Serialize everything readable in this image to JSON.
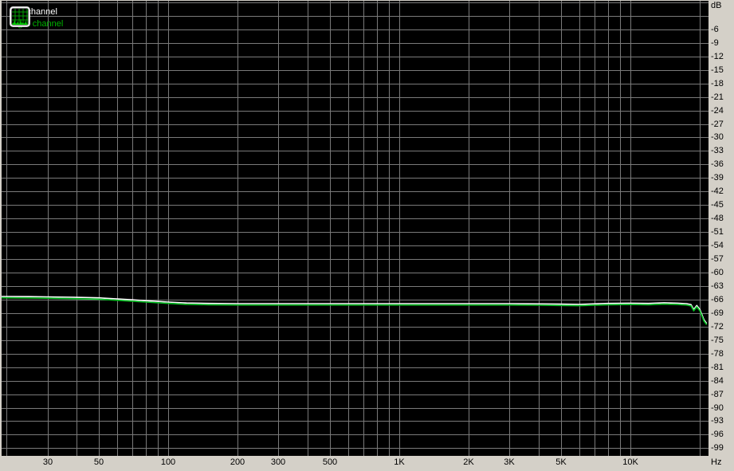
{
  "window": {
    "background": "#d4d0c8",
    "plot_background": "#000000",
    "grid_color": "#7a7a7a",
    "label_color": "#000000"
  },
  "legend": {
    "icon": "spectrum-analyzer-icon",
    "items": [
      {
        "label": "Left channel",
        "color": "#ffffff"
      },
      {
        "label": "Right channel",
        "color": "#00b400"
      }
    ]
  },
  "chart_data": {
    "type": "line",
    "title": "",
    "x_axis": {
      "unit_label": "Hz",
      "scale": "log",
      "min": 19,
      "max": 21800,
      "gridlines": [
        20,
        30,
        40,
        50,
        60,
        70,
        80,
        90,
        100,
        200,
        300,
        400,
        500,
        600,
        700,
        800,
        900,
        1000,
        2000,
        3000,
        4000,
        5000,
        6000,
        7000,
        8000,
        9000,
        10000,
        20000
      ],
      "tick_labels": [
        {
          "f": 30,
          "label": "30"
        },
        {
          "f": 50,
          "label": "50"
        },
        {
          "f": 100,
          "label": "100"
        },
        {
          "f": 200,
          "label": "200"
        },
        {
          "f": 300,
          "label": "300"
        },
        {
          "f": 500,
          "label": "500"
        },
        {
          "f": 1000,
          "label": "1K"
        },
        {
          "f": 2000,
          "label": "2K"
        },
        {
          "f": 3000,
          "label": "3K"
        },
        {
          "f": 5000,
          "label": "5K"
        },
        {
          "f": 10000,
          "label": "10K"
        }
      ]
    },
    "y_axis": {
      "unit_label": "dB",
      "max": 0.35,
      "min": -100.7,
      "grid_step": 3,
      "grid_top": 0,
      "grid_bottom": -99,
      "tick_labels": [
        "-6",
        "-9",
        "-12",
        "-15",
        "-18",
        "-21",
        "-24",
        "-27",
        "-30",
        "-33",
        "-36",
        "-39",
        "-42",
        "-45",
        "-48",
        "-51",
        "-54",
        "-57",
        "-60",
        "-63",
        "-66",
        "-69",
        "-72",
        "-75",
        "-78",
        "-81",
        "-84",
        "-87",
        "-90",
        "-93",
        "-96",
        "-99"
      ]
    },
    "legend_position": "top-left",
    "grid": true,
    "series": [
      {
        "name": "Left channel",
        "color": "#ffffff",
        "points": [
          [
            19,
            -65.3
          ],
          [
            25,
            -65.35
          ],
          [
            30,
            -65.4
          ],
          [
            40,
            -65.5
          ],
          [
            50,
            -65.6
          ],
          [
            60,
            -65.85
          ],
          [
            70,
            -66.05
          ],
          [
            80,
            -66.25
          ],
          [
            100,
            -66.55
          ],
          [
            120,
            -66.75
          ],
          [
            150,
            -66.85
          ],
          [
            200,
            -66.9
          ],
          [
            300,
            -66.9
          ],
          [
            400,
            -66.9
          ],
          [
            500,
            -66.9
          ],
          [
            700,
            -66.9
          ],
          [
            1000,
            -66.9
          ],
          [
            1500,
            -66.9
          ],
          [
            2000,
            -66.9
          ],
          [
            3000,
            -66.9
          ],
          [
            4000,
            -66.95
          ],
          [
            5000,
            -67.0
          ],
          [
            6000,
            -67.05
          ],
          [
            8000,
            -66.85
          ],
          [
            10000,
            -66.8
          ],
          [
            12000,
            -66.85
          ],
          [
            14000,
            -66.7
          ],
          [
            16000,
            -66.8
          ],
          [
            17500,
            -66.9
          ],
          [
            18300,
            -67.1
          ],
          [
            18800,
            -68.2
          ],
          [
            19400,
            -67.3
          ],
          [
            20000,
            -68.2
          ],
          [
            20800,
            -70.4
          ],
          [
            21400,
            -71.3
          ]
        ]
      },
      {
        "name": "Right channel",
        "color": "#00c020",
        "points": [
          [
            19,
            -65.6
          ],
          [
            25,
            -65.65
          ],
          [
            30,
            -65.7
          ],
          [
            40,
            -65.8
          ],
          [
            50,
            -65.9
          ],
          [
            60,
            -66.15
          ],
          [
            70,
            -66.35
          ],
          [
            80,
            -66.55
          ],
          [
            100,
            -66.85
          ],
          [
            120,
            -67.05
          ],
          [
            150,
            -67.15
          ],
          [
            200,
            -67.2
          ],
          [
            300,
            -67.2
          ],
          [
            400,
            -67.2
          ],
          [
            500,
            -67.2
          ],
          [
            700,
            -67.2
          ],
          [
            1000,
            -67.2
          ],
          [
            1500,
            -67.2
          ],
          [
            2000,
            -67.2
          ],
          [
            3000,
            -67.2
          ],
          [
            4000,
            -67.25
          ],
          [
            5000,
            -67.3
          ],
          [
            6000,
            -67.35
          ],
          [
            8000,
            -67.15
          ],
          [
            10000,
            -67.1
          ],
          [
            12000,
            -67.15
          ],
          [
            14000,
            -67.0
          ],
          [
            16000,
            -67.1
          ],
          [
            17500,
            -67.2
          ],
          [
            18300,
            -67.4
          ],
          [
            18800,
            -68.5
          ],
          [
            19400,
            -67.6
          ],
          [
            20000,
            -68.5
          ],
          [
            20800,
            -70.7
          ],
          [
            21400,
            -71.6
          ]
        ]
      }
    ]
  }
}
